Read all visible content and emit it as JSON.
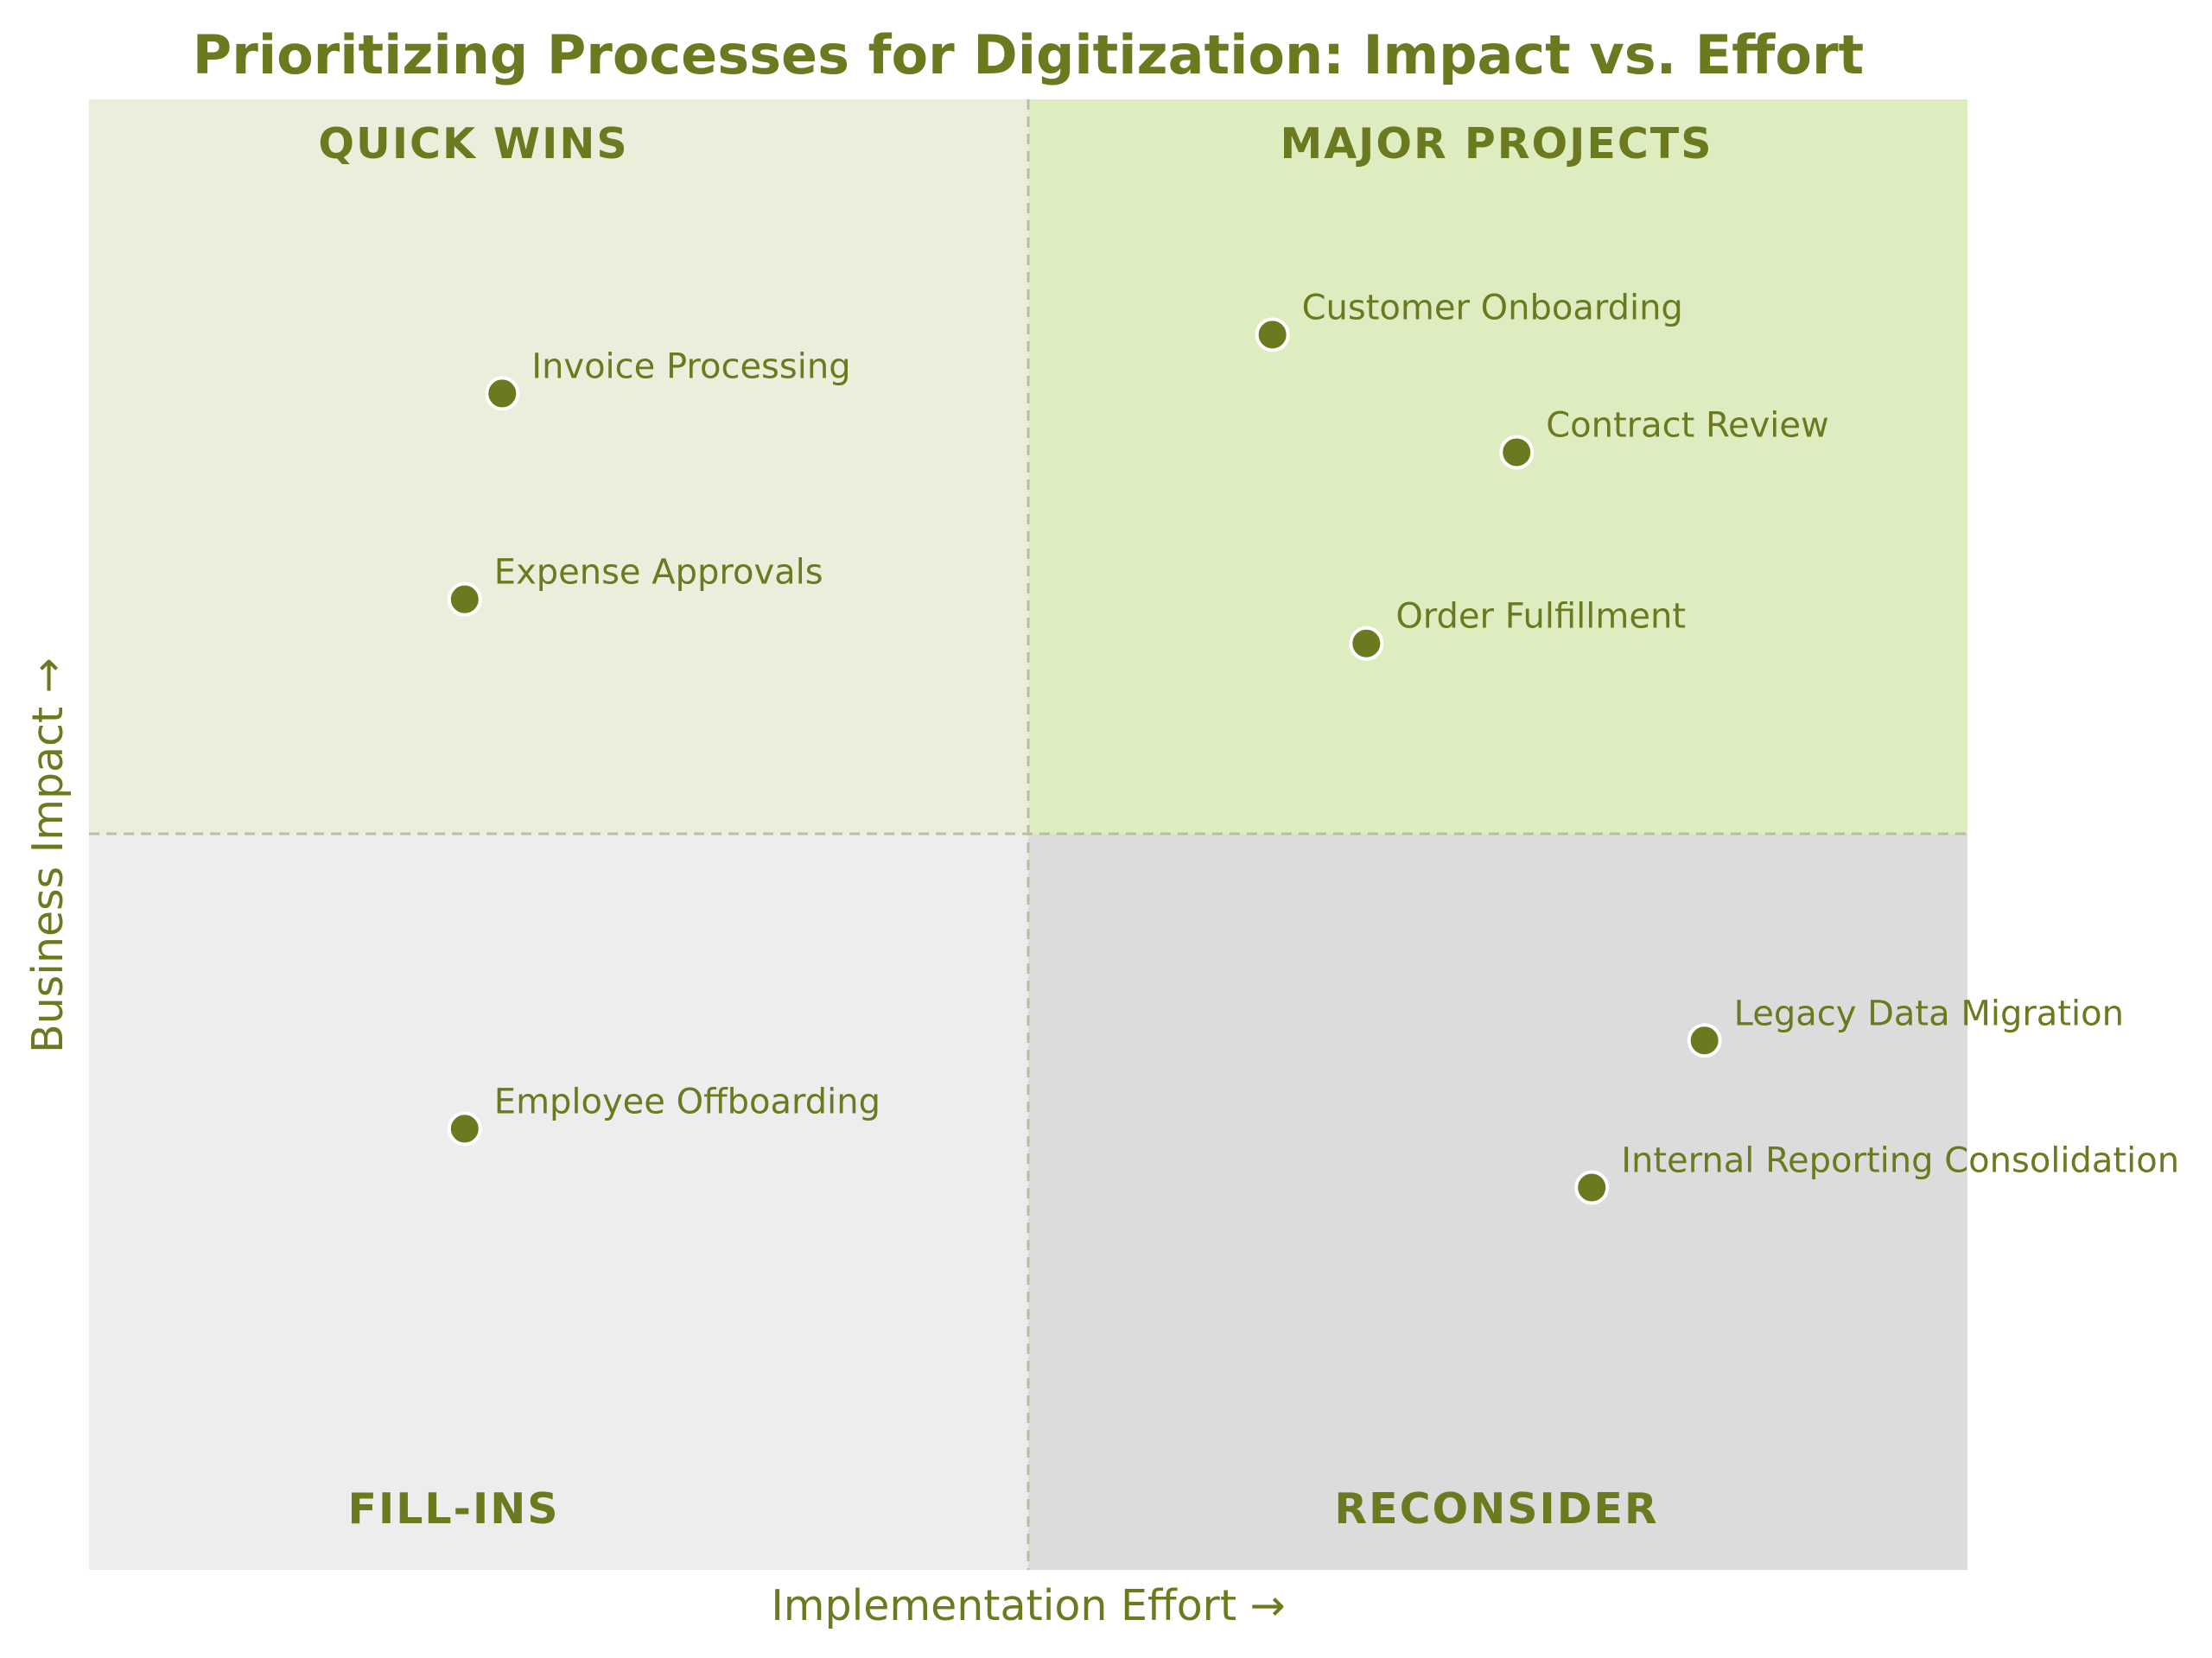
{
  "colors": {
    "accent": "#6b7a1f",
    "quick_wins_bg": "#eceedc",
    "major_projects_bg": "#ddedbf",
    "fill_ins_bg": "#ededed",
    "reconsider_bg": "#dcdcdc",
    "divider": "#b7c1a2"
  },
  "chart_data": {
    "type": "scatter",
    "title": "Prioritizing Processes for Digitization: Impact vs. Effort",
    "xlabel": "Implementation Effort →",
    "ylabel": "Business Impact →",
    "xlim": [
      0,
      10
    ],
    "ylim": [
      0,
      10
    ],
    "divider_x": 5,
    "divider_y": 5,
    "grid": false,
    "quadrants": {
      "top_left": "QUICK WINS",
      "top_right": "MAJOR PROJECTS",
      "bottom_left": "FILL-INS",
      "bottom_right": "RECONSIDER"
    },
    "points": [
      {
        "label": "Invoice Processing",
        "x": 2.2,
        "y": 8.0
      },
      {
        "label": "Expense Approvals",
        "x": 2.0,
        "y": 6.6
      },
      {
        "label": "Customer Onboarding",
        "x": 6.3,
        "y": 8.4
      },
      {
        "label": "Contract Review",
        "x": 7.6,
        "y": 7.6
      },
      {
        "label": "Order Fulfillment",
        "x": 6.8,
        "y": 6.3
      },
      {
        "label": "Employee Offboarding",
        "x": 2.0,
        "y": 3.0
      },
      {
        "label": "Legacy Data Migration",
        "x": 8.6,
        "y": 3.6
      },
      {
        "label": "Internal Reporting Consolidation",
        "x": 8.0,
        "y": 2.6
      }
    ]
  }
}
